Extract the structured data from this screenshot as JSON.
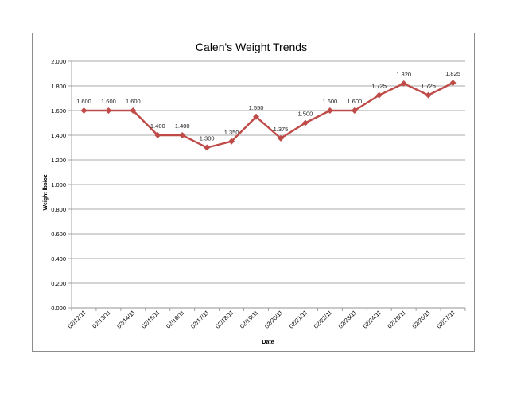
{
  "chart_data": {
    "type": "line",
    "title": "Calen's Weight Trends",
    "xlabel": "Date",
    "ylabel": "Weight lbs/oz",
    "ylim": [
      0,
      2
    ],
    "ytick_step": 0.2,
    "ytick_labels": [
      "0.000",
      "0.200",
      "0.400",
      "0.600",
      "0.800",
      "1.000",
      "1.200",
      "1.400",
      "1.600",
      "1.800",
      "2.000"
    ],
    "grid": true,
    "legend": "none",
    "categories": [
      "02/12/11",
      "02/13/11",
      "02/14/11",
      "02/15/11",
      "02/16/11",
      "02/17/11",
      "02/18/11",
      "02/19/11",
      "02/20/11",
      "02/21/11",
      "02/22/11",
      "02/23/11",
      "02/24/11",
      "02/25/11",
      "02/26/11",
      "02/27/11"
    ],
    "series": [
      {
        "values": [
          1.6,
          1.6,
          1.6,
          1.4,
          1.4,
          1.3,
          1.35,
          1.55,
          1.375,
          1.5,
          1.6,
          1.6,
          1.725,
          1.82,
          1.725,
          1.825
        ],
        "labels": [
          "1.600",
          "1.600",
          "1.600",
          "1.400",
          "1.400",
          "1.300",
          "1.350",
          "1.550",
          "1.375",
          "1.500",
          "1.600",
          "1.600",
          "1.725",
          "1.820",
          "1.725",
          "1.825"
        ],
        "color": "#be4b48"
      }
    ],
    "grid_color": "#8c8c8c",
    "axis_color": "#8c8c8c"
  }
}
